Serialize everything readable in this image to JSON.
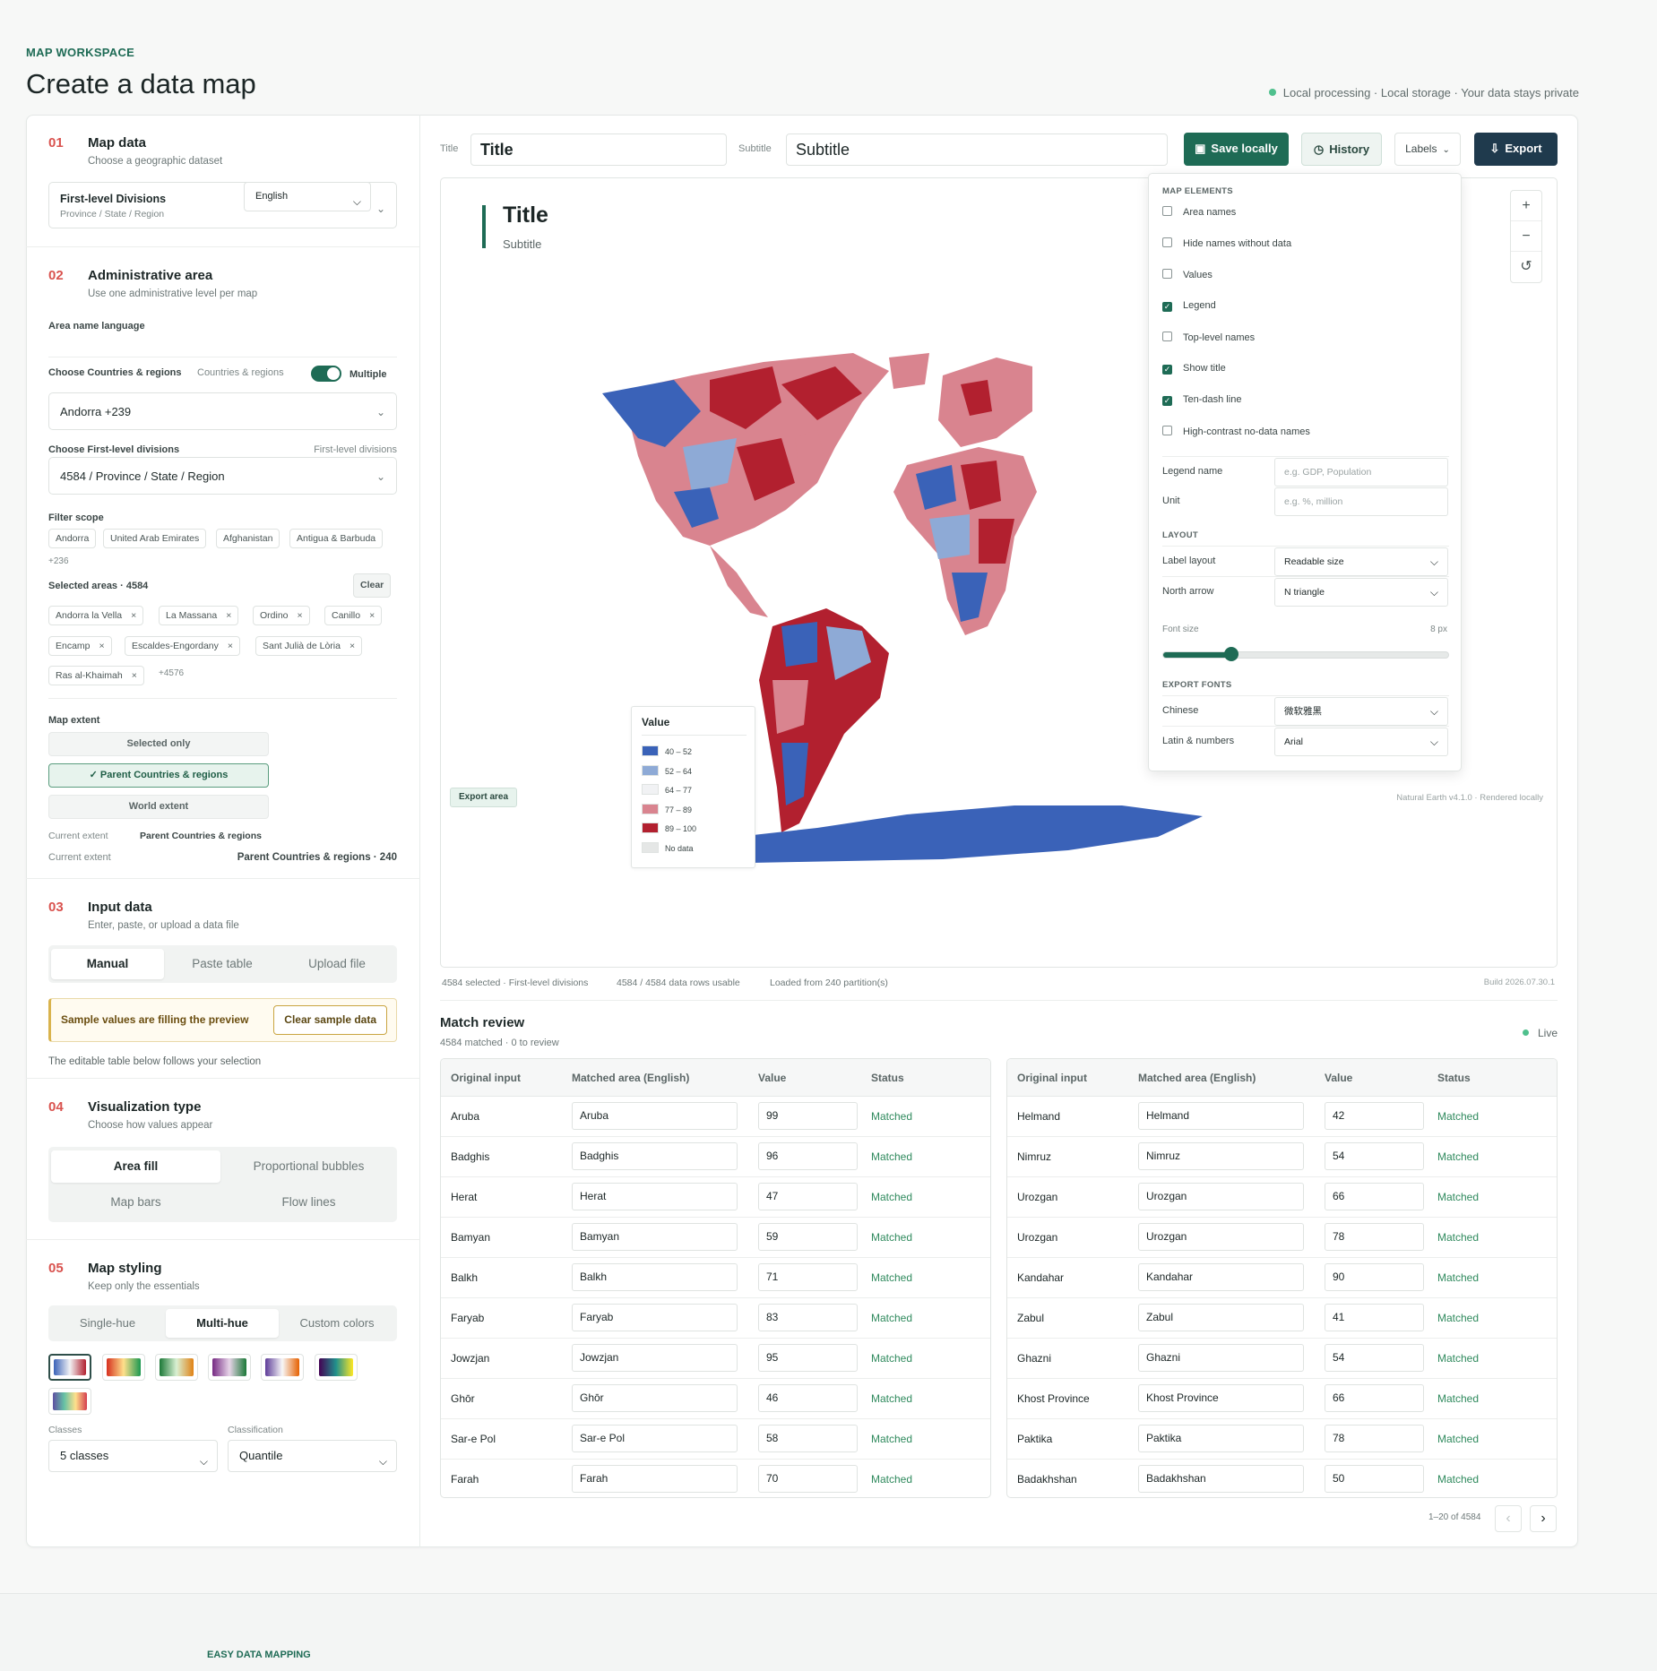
{
  "header": {
    "eyebrow": "MAP WORKSPACE",
    "title": "Create a data map",
    "privacy": "Local processing · Local storage · Your data stays private"
  },
  "s1": {
    "num": "01",
    "title": "Map data",
    "sub": "Choose a geographic dataset",
    "dataset": "First-level Divisions",
    "dataset_sub": "Province / State / Region"
  },
  "s2": {
    "num": "02",
    "title": "Administrative area",
    "sub": "Use one administrative level per map",
    "lang_label": "Area name language",
    "lang": "English",
    "countries_label": "Choose Countries & regions",
    "countries_hint": "Countries & regions",
    "multiple": "Multiple",
    "countries_value": "Andorra +239",
    "fld_label": "Choose First-level divisions",
    "fld_hint": "First-level divisions",
    "fld_value": "4584 / Province / State / Region",
    "filter_label": "Filter scope",
    "filter": [
      "Andorra",
      "United Arab Emirates",
      "Afghanistan",
      "Antigua & Barbuda"
    ],
    "filter_more": "+236",
    "selected_label": "Selected areas · 4584",
    "clear": "Clear",
    "selected": [
      "Andorra la Vella",
      "La Massana",
      "Ordino",
      "Canillo",
      "Encamp",
      "Escaldes-Engordany",
      "Sant Julià de Lòria",
      "Ras al-Khaimah"
    ],
    "selected_more": "+4576",
    "extent_label": "Map extent",
    "extent": [
      "Selected only",
      "✓ Parent Countries & regions",
      "World extent"
    ],
    "cur1_l": "Current extent",
    "cur1_v": "Parent Countries & regions",
    "cur2_l": "Current extent",
    "cur2_v": "Parent Countries & regions · 240"
  },
  "s3": {
    "num": "03",
    "title": "Input data",
    "sub": "Enter, paste, or upload a data file",
    "tabs": [
      "Manual",
      "Paste table",
      "Upload file"
    ],
    "notice": "Sample values are filling the preview",
    "clear_sample": "Clear sample data",
    "note": "The editable table below follows your selection"
  },
  "s4": {
    "num": "04",
    "title": "Visualization type",
    "sub": "Choose how values appear",
    "opts": [
      "Area fill",
      "Proportional bubbles",
      "Map bars",
      "Flow lines"
    ]
  },
  "s5": {
    "num": "05",
    "title": "Map styling",
    "sub": "Keep only the essentials",
    "tabs": [
      "Single-hue",
      "Multi-hue",
      "Custom colors"
    ],
    "classes_label": "Classes",
    "classes": "5 classes",
    "class_label": "Classification",
    "classification": "Quantile"
  },
  "toolbar": {
    "title_label": "Title",
    "title": "Title",
    "subtitle_label": "Subtitle",
    "subtitle": "Subtitle",
    "save": "Save locally",
    "history": "History",
    "labels": "Labels",
    "export": "Export"
  },
  "map": {
    "title": "Title",
    "subtitle": "Subtitle",
    "export_area": "Export area",
    "credit": "Natural Earth v4.1.0 · Rendered locally",
    "zoom_in": "+",
    "zoom_out": "−",
    "reset": "↺",
    "legend_title": "Value",
    "legend": [
      {
        "label": "40 – 52",
        "color": "#3a62b8"
      },
      {
        "label": "52 – 64",
        "color": "#8eaad6"
      },
      {
        "label": "64 – 77",
        "color": "#f1f2f4"
      },
      {
        "label": "77 – 89",
        "color": "#d9848f"
      },
      {
        "label": "89 – 100",
        "color": "#b2202f"
      },
      {
        "label": "No data",
        "color": "#e5e7e6"
      }
    ]
  },
  "panel": {
    "elements_title": "MAP ELEMENTS",
    "checks": [
      {
        "label": "Area names",
        "on": false
      },
      {
        "label": "Hide names without data",
        "on": false
      },
      {
        "label": "Values",
        "on": false
      },
      {
        "label": "Legend",
        "on": true
      },
      {
        "label": "Top-level names",
        "on": false
      },
      {
        "label": "Show title",
        "on": true
      },
      {
        "label": "Ten-dash line",
        "on": true
      },
      {
        "label": "High-contrast no-data names",
        "on": false
      }
    ],
    "legend_name": "Legend name",
    "legend_ph": "e.g. GDP, Population",
    "unit": "Unit",
    "unit_ph": "e.g. %, million",
    "layout_title": "LAYOUT",
    "label_layout": "Label layout",
    "label_layout_v": "Readable size",
    "north": "North arrow",
    "north_v": "N triangle",
    "font_size": "Font size",
    "font_size_v": "8 px",
    "font_fraction": 0.24,
    "fonts_title": "EXPORT FONTS",
    "chinese": "Chinese",
    "chinese_v": "微软雅黑",
    "latin": "Latin & numbers",
    "latin_v": "Arial"
  },
  "status": {
    "a": "4584 selected · First-level divisions",
    "b": "4584 / 4584 data rows usable",
    "c": "Loaded from 240 partition(s)",
    "build": "Build 2026.07.30.1"
  },
  "review": {
    "title": "Match review",
    "sub": "4584 matched · 0 to review",
    "live": "Live",
    "cols": [
      "Original input",
      "Matched area (English)",
      "Value",
      "Status"
    ],
    "left": [
      [
        "Aruba",
        "Aruba",
        "99",
        "Matched"
      ],
      [
        "Badghis",
        "Badghis",
        "96",
        "Matched"
      ],
      [
        "Herat",
        "Herat",
        "47",
        "Matched"
      ],
      [
        "Bamyan",
        "Bamyan",
        "59",
        "Matched"
      ],
      [
        "Balkh",
        "Balkh",
        "71",
        "Matched"
      ],
      [
        "Faryab",
        "Faryab",
        "83",
        "Matched"
      ],
      [
        "Jowzjan",
        "Jowzjan",
        "95",
        "Matched"
      ],
      [
        "Ghōr",
        "Ghōr",
        "46",
        "Matched"
      ],
      [
        "Sar-e Pol",
        "Sar-e Pol",
        "58",
        "Matched"
      ],
      [
        "Farah",
        "Farah",
        "70",
        "Matched"
      ]
    ],
    "right": [
      [
        "Helmand",
        "Helmand",
        "42",
        "Matched"
      ],
      [
        "Nimruz",
        "Nimruz",
        "54",
        "Matched"
      ],
      [
        "Urozgan",
        "Urozgan",
        "66",
        "Matched"
      ],
      [
        "Urozgan",
        "Urozgan",
        "78",
        "Matched"
      ],
      [
        "Kandahar",
        "Kandahar",
        "90",
        "Matched"
      ],
      [
        "Zabul",
        "Zabul",
        "41",
        "Matched"
      ],
      [
        "Ghazni",
        "Ghazni",
        "54",
        "Matched"
      ],
      [
        "Khost Province",
        "Khost Province",
        "66",
        "Matched"
      ],
      [
        "Paktika",
        "Paktika",
        "78",
        "Matched"
      ],
      [
        "Badakhshan",
        "Badakhshan",
        "50",
        "Matched"
      ]
    ],
    "pager": "1–20 of 4584",
    "prev": "‹",
    "next": "›"
  },
  "footer": {
    "brand": "EASY DATA MAPPING"
  },
  "colors": {
    "accent": "#1e6b55",
    "dark": "#1f3a4d",
    "danger": "#d9534f"
  }
}
